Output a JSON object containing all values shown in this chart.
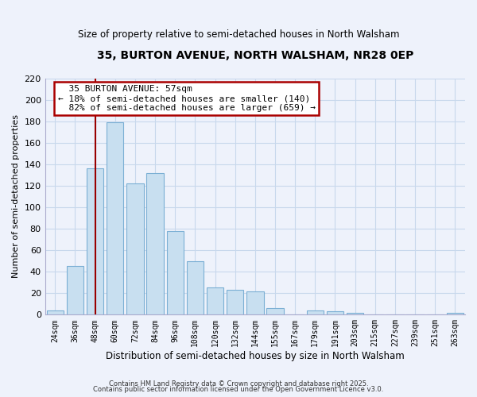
{
  "title": "35, BURTON AVENUE, NORTH WALSHAM, NR28 0EP",
  "subtitle": "Size of property relative to semi-detached houses in North Walsham",
  "bar_labels": [
    "24sqm",
    "36sqm",
    "48sqm",
    "60sqm",
    "72sqm",
    "84sqm",
    "96sqm",
    "108sqm",
    "120sqm",
    "132sqm",
    "144sqm",
    "155sqm",
    "167sqm",
    "179sqm",
    "191sqm",
    "203sqm",
    "215sqm",
    "227sqm",
    "239sqm",
    "251sqm",
    "263sqm"
  ],
  "bar_values": [
    4,
    45,
    136,
    179,
    122,
    132,
    78,
    50,
    25,
    23,
    22,
    6,
    0,
    4,
    3,
    2,
    0,
    0,
    0,
    0,
    2
  ],
  "bar_color": "#c8dff0",
  "bar_edge_color": "#7bafd4",
  "grid_color": "#c8d8ec",
  "background_color": "#eef2fb",
  "ylabel": "Number of semi-detached properties",
  "xlabel": "Distribution of semi-detached houses by size in North Walsham",
  "ylim": [
    0,
    220
  ],
  "yticks": [
    0,
    20,
    40,
    60,
    80,
    100,
    120,
    140,
    160,
    180,
    200,
    220
  ],
  "property_line_x": 2.0,
  "property_line_label": "35 BURTON AVENUE: 57sqm",
  "pct_smaller": 18,
  "pct_larger": 82,
  "count_smaller": 140,
  "count_larger": 659,
  "annotation_box_color": "#ffffff",
  "annotation_box_edge": "#aa0000",
  "footnote1": "Contains HM Land Registry data © Crown copyright and database right 2025.",
  "footnote2": "Contains public sector information licensed under the Open Government Licence v3.0."
}
